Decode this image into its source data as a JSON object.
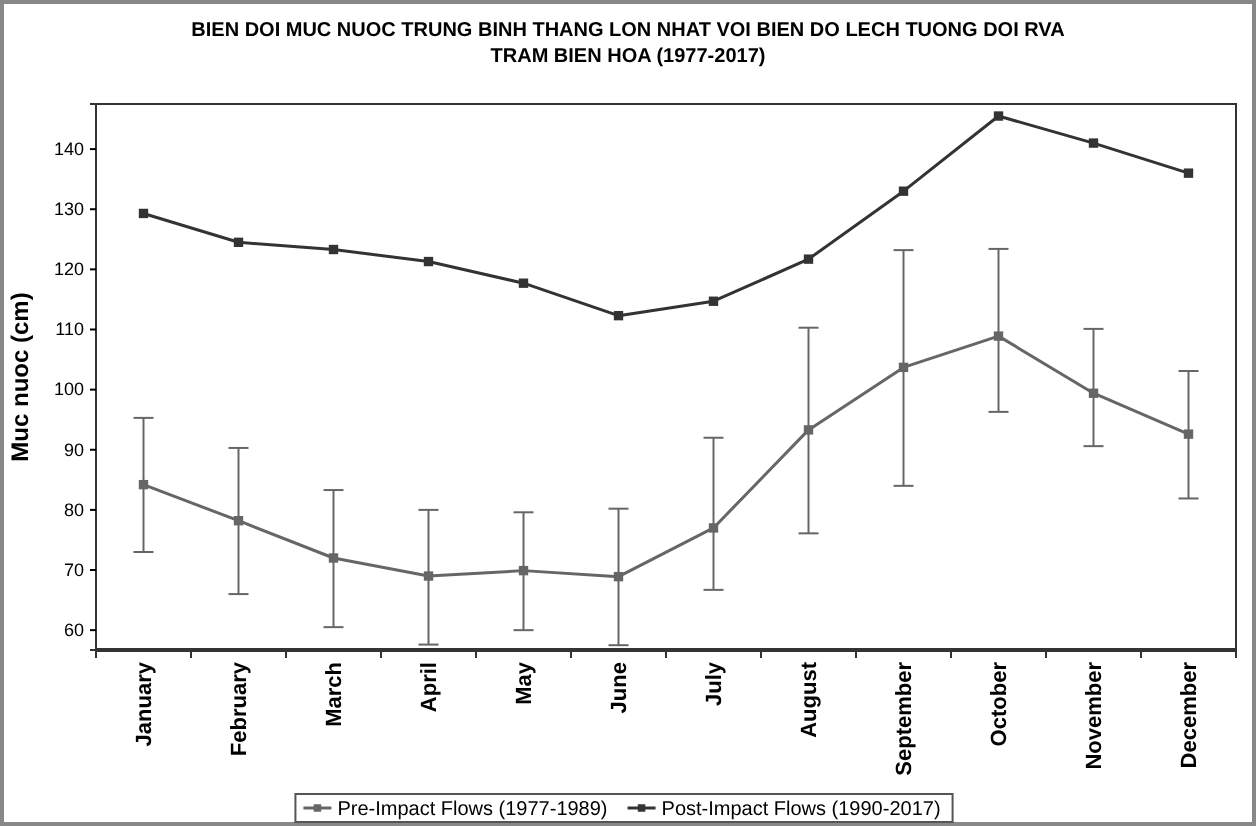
{
  "chart_data": {
    "type": "line",
    "title": "BIEN DOI MUC NUOC TRUNG BINH THANG LON NHAT VOI BIEN DO LECH TUONG DOI RVA",
    "subtitle": "TRAM BIEN HOA  (1977-2017)",
    "ylabel": "Muc nuoc (cm)",
    "categories": [
      "January",
      "February",
      "March",
      "April",
      "May",
      "June",
      "July",
      "August",
      "September",
      "October",
      "November",
      "December"
    ],
    "series": [
      {
        "name": "Pre-Impact Flows (1977-1989)",
        "color": "#666666",
        "values": [
          84.2,
          78.2,
          72,
          69,
          69.9,
          68.9,
          77,
          93.3,
          103.7,
          108.9,
          99.4,
          92.6
        ],
        "errors": [
          [
            73,
            95.3
          ],
          [
            66,
            90.3
          ],
          [
            60.5,
            83.3
          ],
          [
            57.6,
            80
          ],
          [
            60,
            79.6
          ],
          [
            57.5,
            80.2
          ],
          [
            66.7,
            92
          ],
          [
            76.1,
            110.3
          ],
          [
            84,
            123.2
          ],
          [
            96.3,
            123.4
          ],
          [
            90.6,
            110.1
          ],
          [
            81.9,
            103.1
          ]
        ]
      },
      {
        "name": "Post-Impact Flows (1990-2017)",
        "color": "#333333",
        "values": [
          129.3,
          124.5,
          123.3,
          121.3,
          117.7,
          112.3,
          114.7,
          121.7,
          133,
          145.5,
          141,
          136
        ]
      }
    ],
    "ylim": [
      56.7,
      147.5
    ],
    "yticks": [
      60,
      70,
      80,
      90,
      100,
      110,
      120,
      130,
      140
    ],
    "marker": "square",
    "line_style": "solid",
    "grid": false,
    "legend": "bottom"
  }
}
